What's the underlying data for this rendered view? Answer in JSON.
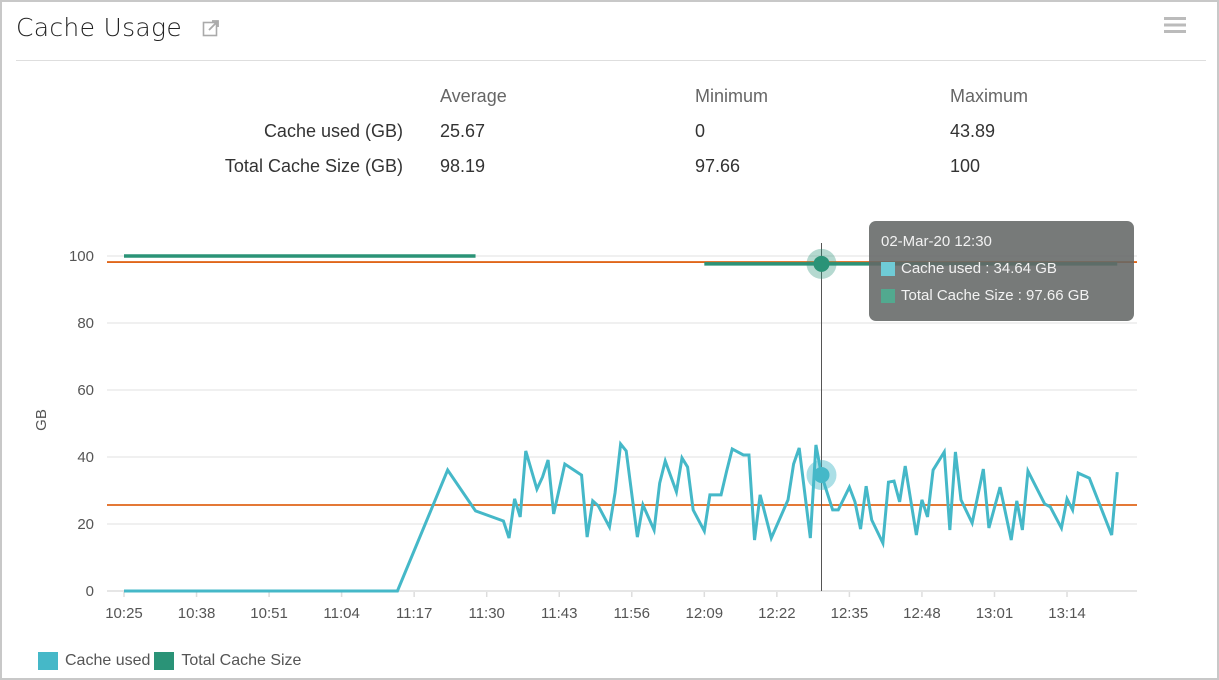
{
  "header": {
    "title": "Cache Usage",
    "icons": [
      "external-link-icon",
      "hamburger-menu-icon"
    ]
  },
  "stats": {
    "columns": [
      "Average",
      "Minimum",
      "Maximum"
    ],
    "rows": [
      {
        "label": "Cache used (GB)",
        "values": [
          "25.67",
          "0",
          "43.89"
        ]
      },
      {
        "label": "Total Cache Size (GB)",
        "values": [
          "98.19",
          "97.66",
          "100"
        ]
      }
    ]
  },
  "colors": {
    "cache_used": "#45b8c8",
    "total_cache": "#2a9377",
    "average_line": "#e0661a"
  },
  "tooltip": {
    "title": "02-Mar-20 12:30",
    "lines": [
      "Cache used : 34.64 GB",
      "Total Cache Size : 97.66 GB"
    ]
  },
  "chart_data": {
    "type": "line",
    "ylabel": "GB",
    "xlabel": "",
    "ylim": [
      0,
      100
    ],
    "yticks": [
      "0",
      "20",
      "40",
      "60",
      "80",
      "100"
    ],
    "xticks": [
      "10:25",
      "10:38",
      "10:51",
      "11:04",
      "11:17",
      "11:30",
      "11:43",
      "11:56",
      "12:09",
      "12:22",
      "12:35",
      "12:48",
      "13:01",
      "13:14"
    ],
    "grid": true,
    "legend": "bottom-left",
    "average_lines": [
      25.67,
      98.19
    ],
    "hover": {
      "x": "12:30",
      "values": [
        34.64,
        97.66
      ]
    },
    "series": [
      {
        "name": "Cache used",
        "points": [
          [
            "10:25",
            0
          ],
          [
            "11:14",
            0
          ],
          [
            "11:23",
            36.1
          ],
          [
            "11:28",
            23.9
          ],
          [
            "11:33",
            20.9
          ],
          [
            "11:34",
            15.8
          ],
          [
            "11:35",
            27.5
          ],
          [
            "11:36",
            22.1
          ],
          [
            "11:37",
            41.8
          ],
          [
            "11:39",
            30.4
          ],
          [
            "11:40",
            34.0
          ],
          [
            "11:41",
            39.1
          ],
          [
            "11:42",
            23.0
          ],
          [
            "11:44",
            37.9
          ],
          [
            "11:47",
            34.6
          ],
          [
            "11:48",
            16.1
          ],
          [
            "11:49",
            26.9
          ],
          [
            "11:50",
            25.4
          ],
          [
            "11:52",
            19.1
          ],
          [
            "11:53",
            29.3
          ],
          [
            "11:54",
            43.89
          ],
          [
            "11:55",
            41.8
          ],
          [
            "11:57",
            16.1
          ],
          [
            "11:58",
            25.7
          ],
          [
            "12:00",
            18.2
          ],
          [
            "12:01",
            32.2
          ],
          [
            "12:02",
            38.8
          ],
          [
            "12:04",
            29.6
          ],
          [
            "12:05",
            39.7
          ],
          [
            "12:06",
            37.0
          ],
          [
            "12:07",
            24.2
          ],
          [
            "12:09",
            17.9
          ],
          [
            "12:10",
            28.7
          ],
          [
            "12:12",
            28.7
          ],
          [
            "12:13",
            35.8
          ],
          [
            "12:14",
            42.4
          ],
          [
            "12:16",
            40.6
          ],
          [
            "12:17",
            40.6
          ],
          [
            "12:18",
            15.2
          ],
          [
            "12:19",
            28.7
          ],
          [
            "12:21",
            15.8
          ],
          [
            "12:24",
            27.2
          ],
          [
            "12:25",
            37.9
          ],
          [
            "12:26",
            42.7
          ],
          [
            "12:28",
            15.8
          ],
          [
            "12:29",
            43.6
          ],
          [
            "12:30",
            34.64
          ],
          [
            "12:32",
            24.2
          ],
          [
            "12:33",
            24.2
          ],
          [
            "12:35",
            31.0
          ],
          [
            "12:36",
            26.6
          ],
          [
            "12:37",
            18.5
          ],
          [
            "12:38",
            31.3
          ],
          [
            "12:39",
            21.2
          ],
          [
            "12:41",
            14.3
          ],
          [
            "12:42",
            32.5
          ],
          [
            "12:43",
            32.8
          ],
          [
            "12:44",
            26.6
          ],
          [
            "12:45",
            37.3
          ],
          [
            "12:47",
            16.7
          ],
          [
            "12:48",
            27.2
          ],
          [
            "12:49",
            22.1
          ],
          [
            "12:50",
            36.1
          ],
          [
            "12:52",
            41.5
          ],
          [
            "12:53",
            18.2
          ],
          [
            "12:54",
            41.5
          ],
          [
            "12:55",
            27.2
          ],
          [
            "12:57",
            20.3
          ],
          [
            "12:59",
            36.4
          ],
          [
            "13:00",
            18.8
          ],
          [
            "13:02",
            31.0
          ],
          [
            "13:04",
            15.2
          ],
          [
            "13:05",
            26.9
          ],
          [
            "13:06",
            18.2
          ],
          [
            "13:07",
            35.8
          ],
          [
            "13:10",
            26.0
          ],
          [
            "13:11",
            25.1
          ],
          [
            "13:13",
            18.8
          ],
          [
            "13:14",
            27.5
          ],
          [
            "13:15",
            24.2
          ],
          [
            "13:16",
            35.2
          ],
          [
            "13:18",
            33.7
          ],
          [
            "13:22",
            16.7
          ],
          [
            "13:23",
            35.5
          ]
        ]
      },
      {
        "name": "Total Cache Size",
        "segments": [
          [
            [
              "10:25",
              100
            ],
            [
              "11:28",
              100
            ]
          ],
          [
            [
              "12:09",
              97.66
            ],
            [
              "13:23",
              97.66
            ]
          ]
        ]
      }
    ]
  }
}
